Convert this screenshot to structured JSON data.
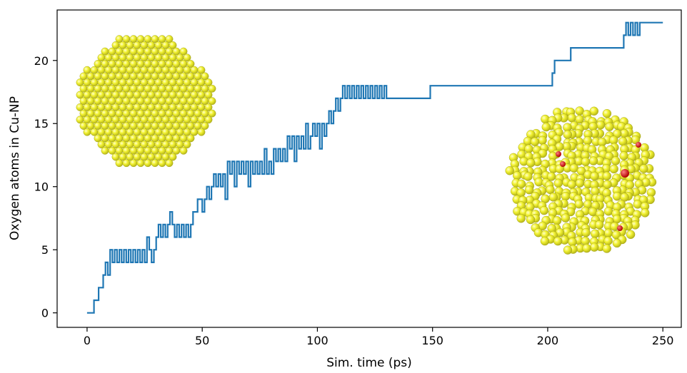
{
  "chart_data": {
    "type": "line",
    "xlabel": "Sim. time (ps)",
    "ylabel": "Oxygen atoms in Cu-NP",
    "xlim": [
      -13,
      258
    ],
    "ylim": [
      -1.15,
      24.0
    ],
    "x_ticks": [
      0,
      50,
      100,
      150,
      200,
      250
    ],
    "y_ticks": [
      0,
      5,
      10,
      15,
      20
    ],
    "line_color": "#1f77b4",
    "grid": false,
    "legend": "none",
    "series": [
      {
        "values_x": [
          0,
          3,
          5,
          7,
          8,
          9,
          10,
          11,
          12,
          13,
          14,
          15,
          16,
          17,
          18,
          19,
          20,
          21,
          22,
          23,
          24,
          25,
          26,
          27,
          28,
          29,
          30,
          31,
          32,
          33,
          34,
          35,
          36,
          37,
          38,
          39,
          40,
          41,
          42,
          43,
          44,
          45,
          46,
          48,
          50,
          51,
          52,
          53,
          54,
          55,
          56,
          57,
          58,
          59,
          60,
          61,
          62,
          63,
          64,
          65,
          66,
          67,
          68,
          69,
          70,
          71,
          72,
          73,
          74,
          75,
          76,
          77,
          78,
          79,
          80,
          81,
          82,
          83,
          84,
          85,
          86,
          87,
          88,
          89,
          90,
          91,
          92,
          93,
          94,
          95,
          96,
          97,
          98,
          99,
          100,
          101,
          102,
          103,
          104,
          105,
          106,
          107,
          108,
          109,
          110,
          111,
          112,
          113,
          114,
          115,
          116,
          117,
          118,
          119,
          120,
          121,
          122,
          123,
          124,
          125,
          126,
          127,
          128,
          129,
          130,
          131,
          132,
          133,
          134,
          148,
          149,
          201,
          202,
          203,
          204,
          205,
          210,
          233,
          234,
          235,
          236,
          237,
          238,
          239,
          240,
          250
        ],
        "values_y": [
          0,
          1,
          2,
          3,
          4,
          3,
          5,
          4,
          5,
          4,
          5,
          4,
          5,
          4,
          5,
          4,
          5,
          4,
          5,
          4,
          5,
          4,
          6,
          5,
          4,
          5,
          6,
          7,
          6,
          7,
          6,
          7,
          8,
          7,
          6,
          7,
          6,
          7,
          6,
          7,
          6,
          7,
          8,
          9,
          8,
          9,
          10,
          9,
          10,
          11,
          10,
          11,
          10,
          11,
          9,
          12,
          11,
          12,
          10,
          12,
          11,
          12,
          11,
          12,
          10,
          12,
          11,
          12,
          11,
          12,
          11,
          13,
          11,
          12,
          11,
          13,
          12,
          13,
          12,
          13,
          12,
          14,
          13,
          14,
          12,
          14,
          13,
          14,
          13,
          15,
          13,
          14,
          15,
          14,
          15,
          13,
          15,
          14,
          15,
          16,
          15,
          16,
          17,
          16,
          17,
          18,
          17,
          18,
          17,
          18,
          17,
          18,
          17,
          18,
          17,
          18,
          17,
          18,
          17,
          18,
          17,
          18,
          17,
          18,
          17,
          17,
          17,
          17,
          17,
          17,
          18,
          18,
          19,
          20,
          20,
          20,
          21,
          22,
          23,
          22,
          23,
          22,
          23,
          22,
          23,
          23
        ]
      }
    ]
  },
  "insets": [
    {
      "kind": "faceted-nanoparticle",
      "atom_color": "#f2f233"
    },
    {
      "kind": "oxidized-nanoparticle",
      "atom_color": "#f2f233",
      "oxygen_color": "#e01010"
    }
  ]
}
